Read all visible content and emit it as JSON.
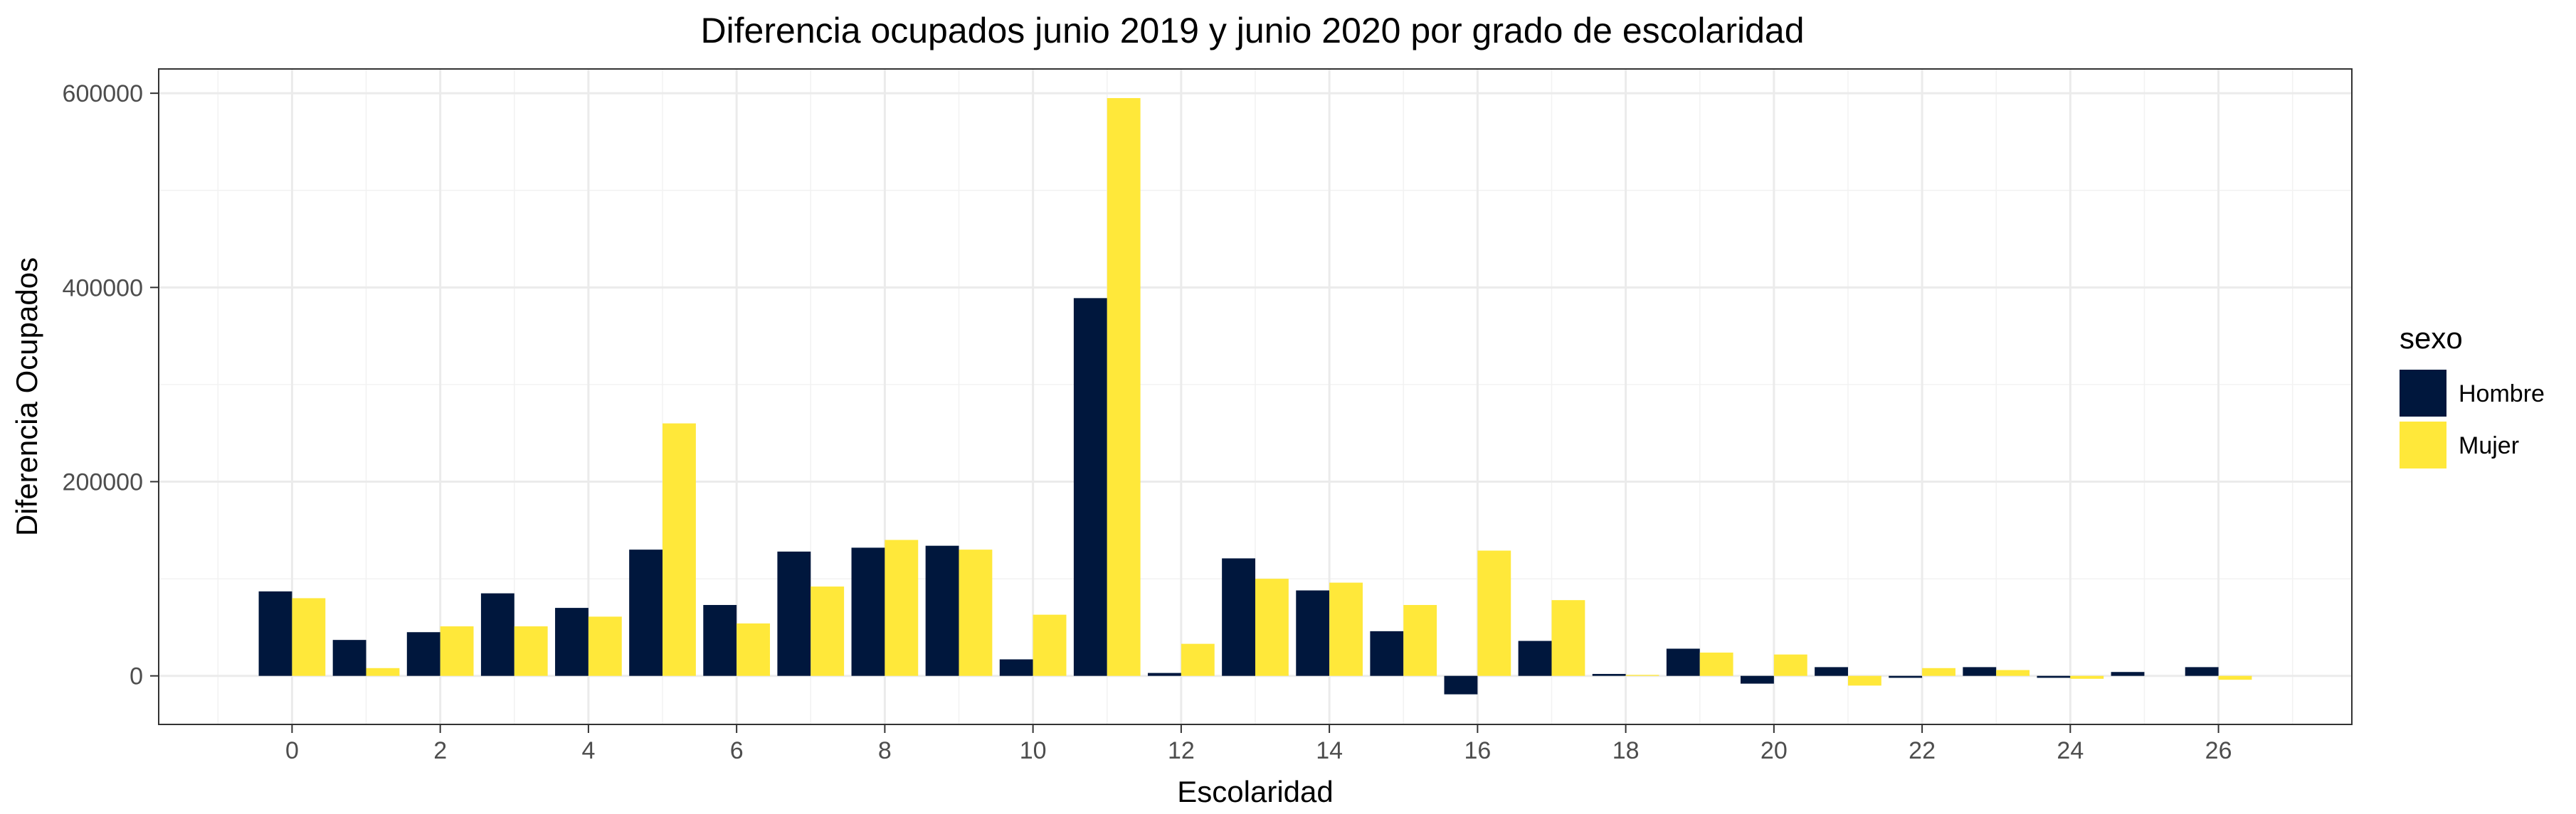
{
  "chart_data": {
    "type": "bar",
    "title": "Diferencia ocupados junio 2019 y junio 2020 por grado de escolaridad",
    "xlabel": "Escolaridad",
    "ylabel": "Diferencia Ocupados",
    "x": [
      0,
      1,
      2,
      3,
      4,
      5,
      6,
      7,
      8,
      9,
      10,
      11,
      12,
      13,
      14,
      15,
      16,
      17,
      18,
      19,
      20,
      21,
      22,
      23,
      24,
      25,
      26
    ],
    "xlim": [
      -1.8,
      27.8
    ],
    "ylim": [
      -50000,
      625000
    ],
    "x_ticks": [
      0,
      2,
      4,
      6,
      8,
      10,
      12,
      14,
      16,
      18,
      20,
      22,
      24,
      26
    ],
    "x_tick_labels": [
      "0",
      "2",
      "4",
      "6",
      "8",
      "10",
      "12",
      "14",
      "16",
      "18",
      "20",
      "22",
      "24",
      "26"
    ],
    "y_ticks": [
      0,
      200000,
      400000,
      600000
    ],
    "y_tick_labels": [
      "0",
      "200000",
      "400000",
      "600000"
    ],
    "series": [
      {
        "name": "Hombre",
        "color": "#00173d",
        "values": [
          87000,
          37000,
          45000,
          85000,
          70000,
          130000,
          73000,
          128000,
          132000,
          134000,
          17000,
          389000,
          3000,
          121000,
          88000,
          46000,
          -19000,
          36000,
          2000,
          28000,
          -8000,
          9000,
          -2000,
          9000,
          -2000,
          4000,
          9000
        ]
      },
      {
        "name": "Mujer",
        "color": "#ffe83a",
        "values": [
          80000,
          8000,
          51000,
          51000,
          61000,
          260000,
          54000,
          92000,
          140000,
          130000,
          63000,
          595000,
          33000,
          100000,
          96000,
          73000,
          129000,
          78000,
          1000,
          24000,
          22000,
          -10000,
          8000,
          6000,
          -3000,
          0,
          -4000
        ]
      }
    ],
    "legend": {
      "title": "sexo",
      "position": "right"
    },
    "grid": true
  }
}
